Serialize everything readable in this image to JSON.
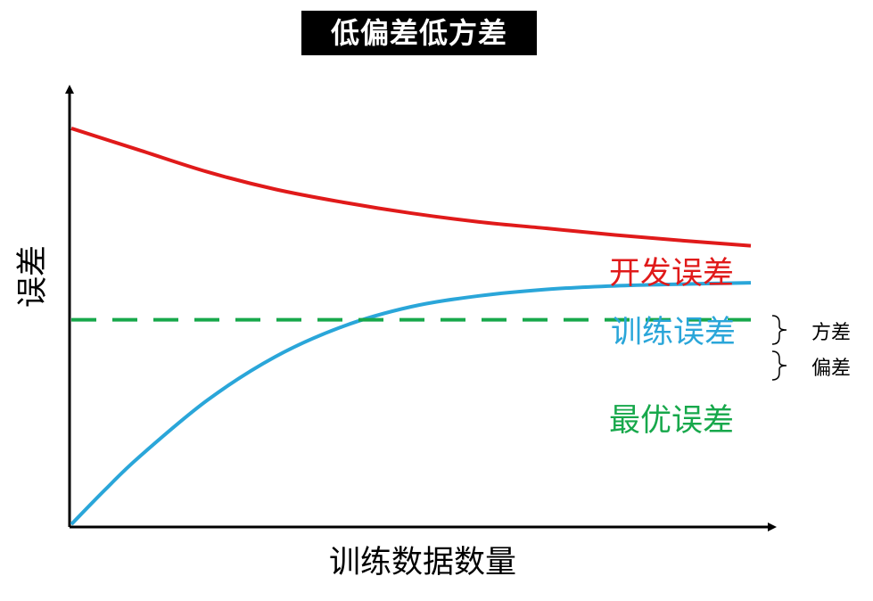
{
  "chart_data": {
    "type": "line",
    "title": "低偏差低方差",
    "xlabel": "训练数据数量",
    "ylabel": "误差",
    "series": [
      {
        "name": "开发误差",
        "color": "#e01a1a",
        "style": "solid",
        "points": [
          [
            0,
            0.91
          ],
          [
            0.1,
            0.86
          ],
          [
            0.2,
            0.81
          ],
          [
            0.3,
            0.77
          ],
          [
            0.4,
            0.74
          ],
          [
            0.5,
            0.715
          ],
          [
            0.6,
            0.695
          ],
          [
            0.7,
            0.68
          ],
          [
            0.8,
            0.665
          ],
          [
            0.9,
            0.652
          ],
          [
            1,
            0.64
          ]
        ]
      },
      {
        "name": "训练误差",
        "color": "#2aa6d9",
        "style": "solid",
        "points": [
          [
            0,
            0
          ],
          [
            0.05,
            0.08
          ],
          [
            0.1,
            0.155
          ],
          [
            0.2,
            0.285
          ],
          [
            0.3,
            0.385
          ],
          [
            0.4,
            0.455
          ],
          [
            0.5,
            0.5
          ],
          [
            0.6,
            0.525
          ],
          [
            0.7,
            0.54
          ],
          [
            0.8,
            0.548
          ],
          [
            0.9,
            0.552
          ],
          [
            1,
            0.555
          ]
        ]
      },
      {
        "name": "最优误差",
        "color": "#17a84b",
        "style": "dashed",
        "points": [
          [
            0,
            0.47
          ],
          [
            1,
            0.47
          ]
        ]
      }
    ],
    "annotations": [
      {
        "text": "方差",
        "between": [
          "开发误差",
          "训练误差"
        ]
      },
      {
        "text": "偏差",
        "between": [
          "训练误差",
          "最优误差"
        ]
      }
    ],
    "xlim": [
      0,
      1
    ],
    "ylim": [
      0,
      1
    ],
    "grid": false,
    "legend": "inline-labels"
  }
}
